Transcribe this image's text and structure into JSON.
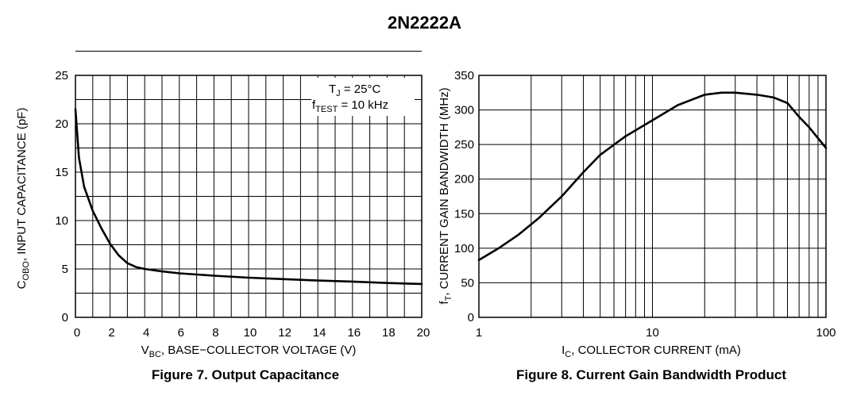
{
  "title": "2N2222A",
  "chart_data": [
    {
      "type": "line",
      "caption": "Figure 7. Output Capacitance",
      "xlabel_main": "V",
      "xlabel_sub": "BC",
      "xlabel_rest": ", BASE−COLLECTOR VOLTAGE (V)",
      "ylabel_main": "C",
      "ylabel_sub": "OBO",
      "ylabel_rest": ", INPUT CAPACITANCE (pF)",
      "xlim": [
        0,
        20
      ],
      "ylim": [
        0,
        25
      ],
      "xticks": [
        "0",
        "2",
        "4",
        "6",
        "8",
        "10",
        "12",
        "14",
        "16",
        "18",
        "20"
      ],
      "yticks": [
        "0",
        "5",
        "10",
        "15",
        "20",
        "25"
      ],
      "grid": true,
      "annotation": {
        "line1_main": "T",
        "line1_sub": "J",
        "line1_rest": " = 25°C",
        "line2_main": "f",
        "line2_sub": "TEST",
        "line2_rest": " = 10 kHz"
      },
      "series": [
        {
          "x": [
            0,
            0.2,
            0.5,
            1.0,
            1.5,
            2.0,
            2.5,
            3.0,
            3.5,
            4.0,
            5.0,
            6.0,
            8.0,
            10.0,
            12.0,
            14.0,
            16.0,
            18.0,
            20.0
          ],
          "y": [
            21.5,
            16.5,
            13.5,
            11.0,
            9.2,
            7.6,
            6.4,
            5.6,
            5.2,
            5.0,
            4.75,
            4.55,
            4.3,
            4.1,
            3.95,
            3.8,
            3.7,
            3.55,
            3.45
          ]
        }
      ]
    },
    {
      "type": "line",
      "caption": "Figure 8. Current Gain Bandwidth Product",
      "xlabel_main": "I",
      "xlabel_sub": "C",
      "xlabel_rest": ", COLLECTOR CURRENT (mA)",
      "ylabel_main": "f",
      "ylabel_sub": "T",
      "ylabel_rest": ", CURRENT GAIN BANDWIDTH (MHz)",
      "xscale": "log",
      "xlim": [
        1,
        100
      ],
      "ylim": [
        0,
        350
      ],
      "xticks": [
        "1",
        "10",
        "100"
      ],
      "yticks": [
        "0",
        "50",
        "100",
        "150",
        "200",
        "250",
        "300",
        "350"
      ],
      "grid": true,
      "series": [
        {
          "x": [
            1,
            1.3,
            1.7,
            2.2,
            3,
            4,
            5,
            7,
            10,
            14,
            20,
            25,
            30,
            40,
            50,
            60,
            70,
            80,
            100
          ],
          "y": [
            83,
            100,
            120,
            143,
            175,
            210,
            235,
            262,
            285,
            307,
            322,
            325,
            325,
            322,
            318,
            310,
            290,
            275,
            245
          ]
        }
      ]
    }
  ]
}
